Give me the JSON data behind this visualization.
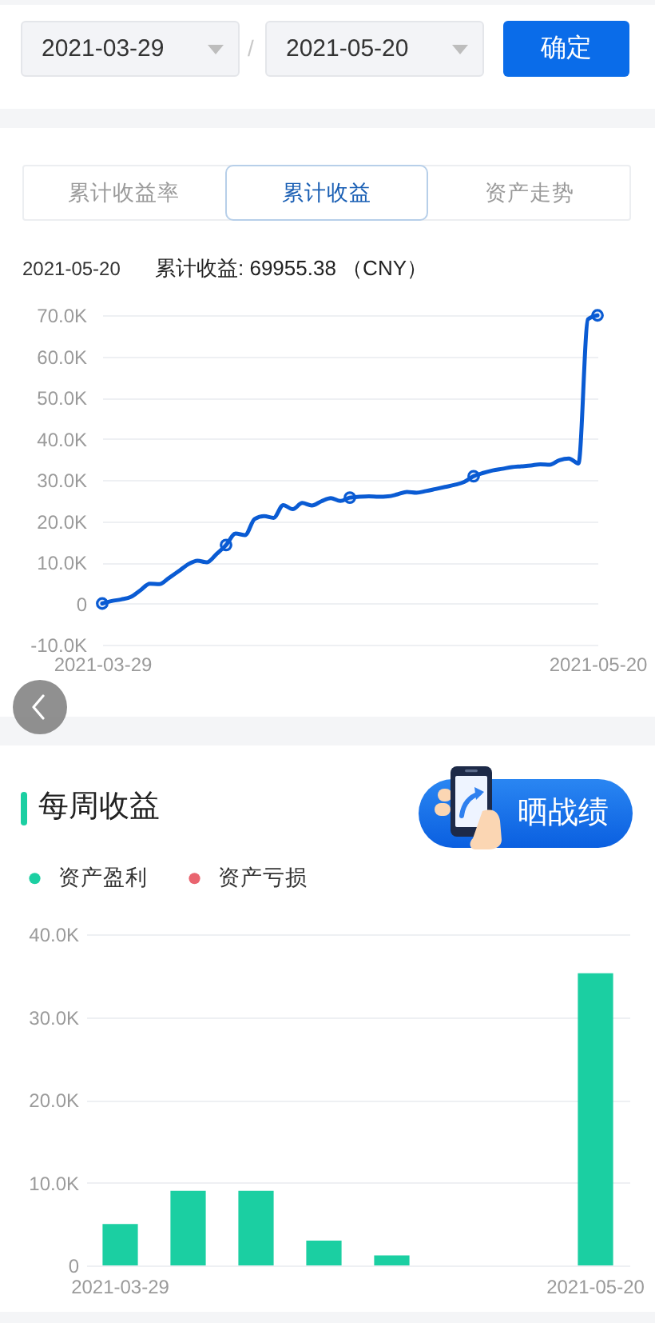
{
  "chart_data": [
    {
      "type": "line",
      "annotations": [
        "2021-03-29",
        "/",
        "2021-05-20",
        "确定",
        "累计收益率",
        "累计收益",
        "资产走势",
        "2021-05-20",
        "累计收益: 69955.38 （CNY）"
      ],
      "series": [
        {
          "type": "line",
          "color": "#0a5bd3",
          "x": [
            "2021-03-29",
            "2021-03-30",
            "2021-03-31",
            "2021-04-01",
            "2021-04-02",
            "2021-04-03",
            "2021-04-04",
            "2021-04-05",
            "2021-04-06",
            "2021-04-07",
            "2021-04-08",
            "2021-04-09",
            "2021-04-10",
            "2021-04-11",
            "2021-04-12",
            "2021-04-13",
            "2021-04-14",
            "2021-04-15",
            "2021-04-16",
            "2021-04-17",
            "2021-04-18",
            "2021-04-19",
            "2021-04-20",
            "2021-04-21",
            "2021-04-22",
            "2021-04-23",
            "2021-04-24",
            "2021-04-25",
            "2021-04-26",
            "2021-04-27",
            "2021-04-28",
            "2021-04-29",
            "2021-04-30",
            "2021-05-01",
            "2021-05-02",
            "2021-05-03",
            "2021-05-04",
            "2021-05-05",
            "2021-05-06",
            "2021-05-07",
            "2021-05-08",
            "2021-05-09",
            "2021-05-10",
            "2021-05-11",
            "2021-05-12",
            "2021-05-13",
            "2021-05-14",
            "2021-05-15",
            "2021-05-16",
            "2021-05-17",
            "2021-05-18",
            "2021-05-19",
            "2021-05-20"
          ],
          "values": [
            0,
            600,
            1000,
            1600,
            3200,
            4800,
            4700,
            6200,
            7800,
            9500,
            10400,
            10000,
            12000,
            14200,
            17000,
            16600,
            20500,
            21200,
            20800,
            23900,
            22900,
            24400,
            23800,
            24800,
            25600,
            24900,
            25700,
            25900,
            26000,
            25900,
            26000,
            26500,
            27100,
            26900,
            27300,
            27800,
            28300,
            28800,
            29500,
            30900,
            31700,
            32300,
            32700,
            33100,
            33300,
            33500,
            33800,
            33700,
            34800,
            35200,
            34000,
            69000,
            69955.38
          ]
        },
        {
          "type": "scatter",
          "color": "#0a5bd3",
          "marker": "circle",
          "x": [
            "2021-03-29",
            "2021-04-11",
            "2021-04-24",
            "2021-05-07",
            "2021-05-20"
          ],
          "values": [
            0,
            14200,
            25700,
            30900,
            69955.38
          ]
        }
      ],
      "xlim": [
        "2021-03-29",
        "2021-05-20"
      ],
      "xticks": [
        "2021-03-29",
        "2021-05-20"
      ],
      "ylim": [
        -10000,
        70000
      ],
      "yticks": [
        {
          "value": -10000,
          "label": "-10.0K"
        },
        0,
        {
          "value": 10000,
          "label": "10.0K"
        },
        {
          "value": 20000,
          "label": "20.0K"
        },
        {
          "value": 30000,
          "label": "30.0K"
        },
        {
          "value": 40000,
          "label": "40.0K"
        },
        {
          "value": 50000,
          "label": "50.0K"
        },
        {
          "value": 60000,
          "label": "60.0K"
        },
        {
          "value": 70000,
          "label": "70.0K"
        }
      ],
      "grid": "y"
    },
    {
      "type": "bar",
      "title": "每周收益",
      "annotations": [
        "晒战绩"
      ],
      "categories": [
        "2021-03-29",
        null,
        null,
        null,
        null,
        null,
        null,
        "2021-05-20"
      ],
      "series": [
        {
          "name": "资产盈利",
          "color": "#1bcfa2",
          "values": [
            5000,
            9000,
            9000,
            3000,
            1200,
            null,
            null,
            35300
          ]
        },
        {
          "name": "资产亏损",
          "color": "#e9646f",
          "values": [
            null,
            null,
            null,
            null,
            null,
            null,
            null,
            null
          ]
        }
      ],
      "stacked": true,
      "ylim": [
        0,
        40000
      ],
      "yticks": [
        0,
        {
          "value": 10000,
          "label": "10.0K"
        },
        {
          "value": 20000,
          "label": "20.0K"
        },
        {
          "value": 30000,
          "label": "30.0K"
        },
        {
          "value": 40000,
          "label": "40.0K"
        }
      ],
      "grid": "y",
      "legend": "top left"
    }
  ]
}
